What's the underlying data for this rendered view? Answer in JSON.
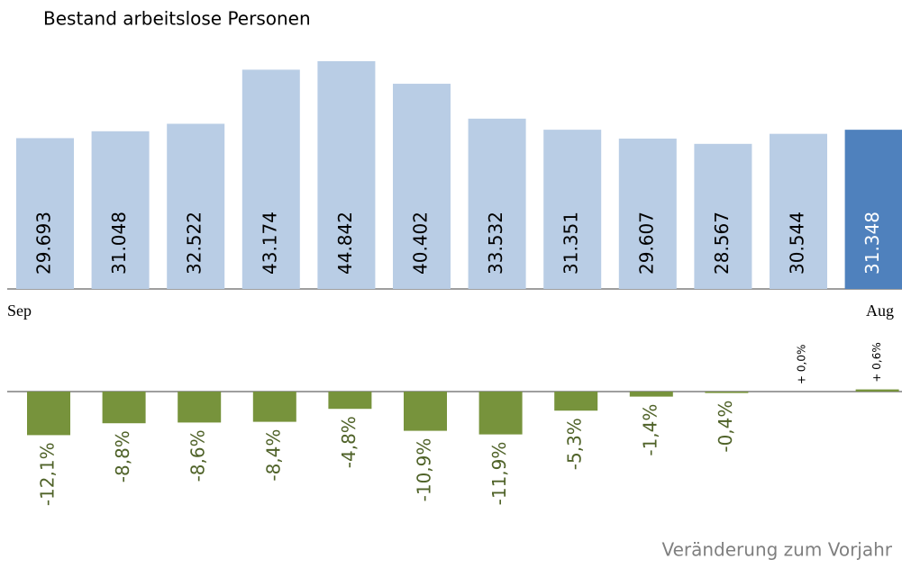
{
  "chart_data": [
    {
      "type": "bar",
      "title": "Bestand arbeitslose  Personen",
      "categories": [
        "Sep",
        null,
        null,
        null,
        null,
        null,
        null,
        null,
        null,
        null,
        null,
        "Aug"
      ],
      "values": [
        29693,
        31048,
        32522,
        43174,
        44842,
        40402,
        33532,
        31351,
        29607,
        28567,
        30544,
        31348
      ],
      "value_labels": [
        "29.693",
        "31.048",
        "32.522",
        "43.174",
        "44.842",
        "40.402",
        "33.532",
        "31.351",
        "29.607",
        "28.567",
        "30.544",
        "31.348"
      ],
      "colors": [
        "#b9cde5",
        "#b9cde5",
        "#b9cde5",
        "#b9cde5",
        "#b9cde5",
        "#b9cde5",
        "#b9cde5",
        "#b9cde5",
        "#b9cde5",
        "#b9cde5",
        "#b9cde5",
        "#4f81bd"
      ]
    },
    {
      "type": "bar",
      "title": "Veränderung zum Vorjahr",
      "values": [
        -12.1,
        -8.8,
        -8.6,
        -8.4,
        -4.8,
        -10.9,
        -11.9,
        -5.3,
        -1.4,
        -0.4,
        0.0,
        0.6
      ],
      "value_labels": [
        "-12,1%",
        "-8,8%",
        "-8,6%",
        "-8,4%",
        "-4,8%",
        "-10,9%",
        "-11,9%",
        "-5,3%",
        "-1,4%",
        "-0,4%",
        "+ 0,0%",
        "+ 0,6%"
      ],
      "color": "#77933c"
    }
  ]
}
